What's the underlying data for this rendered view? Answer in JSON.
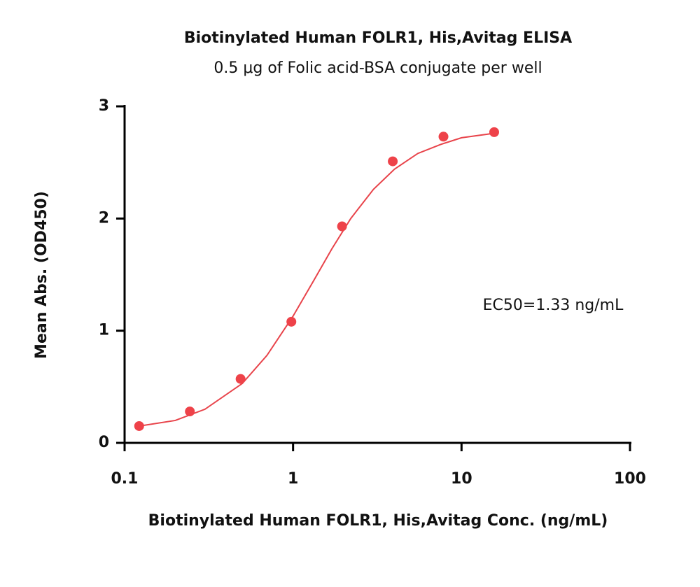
{
  "chart_data": {
    "type": "scatter",
    "title": "Biotinylated Human FOLR1, His,Avitag ELISA",
    "subtitle": "0.5 μg of Folic acid-BSA conjugate per well",
    "x_label": "Biotinylated Human FOLR1, His,Avitag Conc. (ng/mL)",
    "y_label": "Mean Abs. (OD450)",
    "annotation": "EC50=1.33 ng/mL",
    "xscale": "log",
    "xlim": [
      0.1,
      100
    ],
    "xticks": [
      0.1,
      1,
      10,
      100
    ],
    "ylim": [
      0,
      3
    ],
    "yticks": [
      0,
      1,
      2,
      3
    ],
    "series": [
      {
        "mode": "markers",
        "color": "#ee4249",
        "x": [
          0.122,
          0.244,
          0.488,
          0.977,
          1.953,
          3.906,
          7.8125,
          15.625
        ],
        "values": [
          0.15,
          0.28,
          0.57,
          1.08,
          1.93,
          2.51,
          2.73,
          2.77
        ]
      },
      {
        "mode": "line",
        "color": "#e8434a",
        "x": [
          0.122,
          0.2,
          0.3,
          0.5,
          0.7,
          1,
          1.33,
          1.7,
          2.2,
          3,
          4,
          5.5,
          7.5,
          10,
          15.625
        ],
        "values": [
          0.15,
          0.2,
          0.3,
          0.53,
          0.78,
          1.13,
          1.45,
          1.73,
          2.0,
          2.26,
          2.44,
          2.58,
          2.66,
          2.72,
          2.76
        ]
      }
    ]
  }
}
